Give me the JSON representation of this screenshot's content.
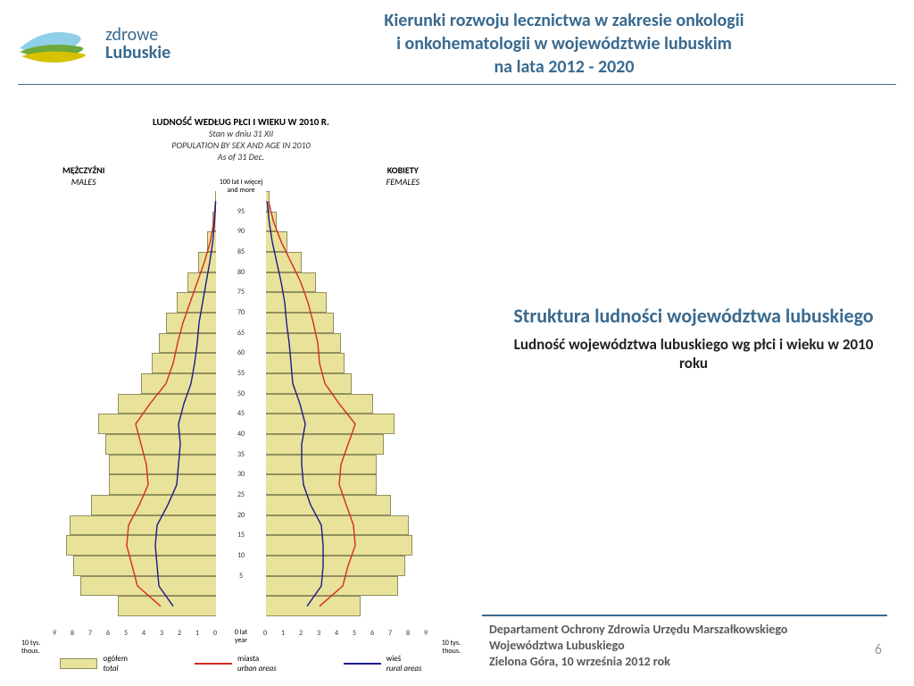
{
  "logo": {
    "line1": "zdrowe",
    "line2": "Lubuskie"
  },
  "header": {
    "l1": "Kierunki rozwoju lecznictwa w zakresie onkologii",
    "l2": "i onkohematologii w województwie lubuskim",
    "l3": "na lata 2012 - 2020"
  },
  "chart": {
    "title_pl": "LUDNOŚĆ WEDŁUG PŁCI I WIEKU W 2010 R.",
    "title_sub_pl": "Stan w dniu 31 XII",
    "title_en": "POPULATION BY SEX AND AGE IN 2010",
    "title_sub_en": "As of 31 Dec.",
    "left_pl": "MĘŻCZYŹNI",
    "left_en": "MALES",
    "right_pl": "KOBIETY",
    "right_en": "FEMALES",
    "top_axis": "100 lat i więcej\nand more",
    "bottom_axis": "0 lat\nyear",
    "x_unit_left": "10 tys.\nthous.",
    "x_unit_right": "10 tys.\nthous.",
    "y_ticks": [
      95,
      90,
      85,
      80,
      75,
      70,
      65,
      60,
      55,
      50,
      45,
      40,
      35,
      30,
      25,
      20,
      15,
      10,
      5
    ],
    "x_ticks": [
      0,
      1,
      2,
      3,
      4,
      5,
      6,
      7,
      8,
      9
    ],
    "total": {
      "males": [
        0.05,
        0.2,
        0.5,
        1.0,
        1.6,
        2.2,
        2.8,
        3.2,
        3.6,
        4.2,
        5.5,
        6.6,
        6.2,
        6.0,
        6.0,
        7.0,
        8.2,
        8.4,
        8.0,
        7.6,
        5.5
      ],
      "females": [
        0.2,
        0.6,
        1.2,
        2.0,
        2.8,
        3.4,
        3.8,
        4.2,
        4.4,
        4.8,
        6.0,
        7.2,
        6.6,
        6.2,
        6.2,
        7.0,
        8.0,
        8.2,
        7.8,
        7.4,
        5.3
      ]
    },
    "urban": {
      "males": [
        0.03,
        0.12,
        0.32,
        0.65,
        1.05,
        1.45,
        1.85,
        2.15,
        2.4,
        2.8,
        3.7,
        4.5,
        4.2,
        3.9,
        3.8,
        4.3,
        4.9,
        5.0,
        4.7,
        4.4,
        3.1
      ],
      "females": [
        0.14,
        0.42,
        0.85,
        1.4,
        1.95,
        2.35,
        2.65,
        2.9,
        3.0,
        3.3,
        4.1,
        5.0,
        4.6,
        4.2,
        4.1,
        4.5,
        4.9,
        5.0,
        4.6,
        4.3,
        3.0
      ]
    },
    "rural": {
      "males": [
        0.02,
        0.08,
        0.18,
        0.35,
        0.55,
        0.75,
        0.95,
        1.05,
        1.2,
        1.4,
        1.8,
        2.1,
        2.0,
        2.1,
        2.2,
        2.7,
        3.3,
        3.4,
        3.3,
        3.2,
        2.4
      ],
      "females": [
        0.06,
        0.18,
        0.35,
        0.6,
        0.85,
        1.05,
        1.15,
        1.3,
        1.4,
        1.5,
        1.9,
        2.2,
        2.0,
        2.0,
        2.1,
        2.5,
        3.1,
        3.2,
        3.2,
        3.1,
        2.3
      ]
    },
    "colors": {
      "total_fill": "#e9e29a",
      "urban": "#d52b1e",
      "rural": "#1a1a8a"
    },
    "legend": {
      "total_pl": "ogółem",
      "total_en": "total",
      "urban_pl": "miasta",
      "urban_en": "urban areas",
      "rural_pl": "wieś",
      "rural_en": "rural areas"
    }
  },
  "right": {
    "heading": "Struktura ludności województwa lubuskiego",
    "sub": "Ludność województwa lubuskiego wg płci i wieku w 2010 roku"
  },
  "footer": {
    "l1": "Departament Ochrony Zdrowia Urzędu Marszałkowskiego",
    "l2": "Województwa Lubuskiego",
    "l3": "Zielona Góra, 10 września 2012 rok"
  },
  "page": "6"
}
